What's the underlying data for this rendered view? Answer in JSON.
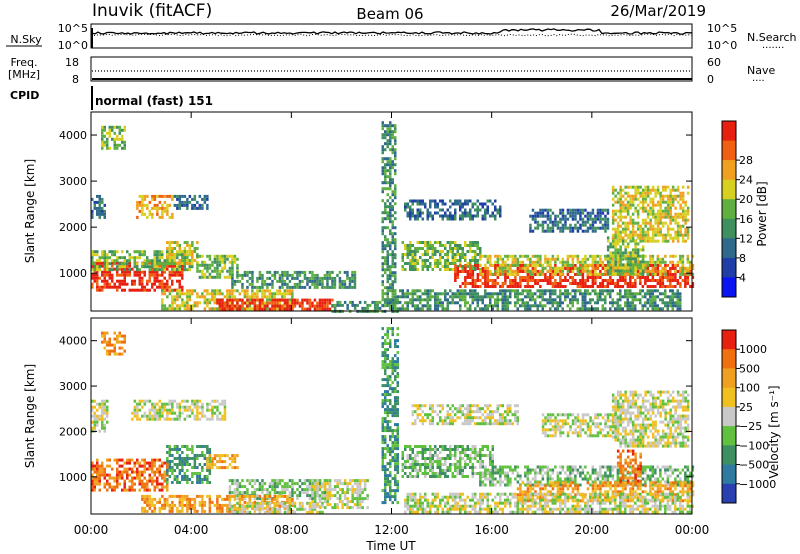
{
  "header": {
    "station": "Inuvik (fitACF)",
    "beam": "Beam 06",
    "date": "26/Mar/2019"
  },
  "noise_panel": {
    "left_label": "N.Sky",
    "right_label": "N.Search",
    "right_label_dots": "·······",
    "left_ticks": [
      "10^5",
      "10^0"
    ],
    "right_ticks": [
      "10^5",
      "10^0"
    ]
  },
  "freq_panel": {
    "left_label": "Freq.",
    "left_unit": "[MHz]",
    "right_label": "Nave",
    "right_label_dots": "····",
    "left_ticks": [
      "18",
      "8"
    ],
    "right_ticks": [
      "60",
      "0"
    ]
  },
  "cpid_panel": {
    "left_label": "CPID",
    "value": "normal (fast) 151"
  },
  "x_axis": {
    "label": "Time UT",
    "ticks": [
      "00:00",
      "04:00",
      "08:00",
      "12:00",
      "16:00",
      "20:00",
      "00:00"
    ],
    "tick_hours": [
      0,
      4,
      8,
      12,
      16,
      20,
      24
    ]
  },
  "chart_data": [
    {
      "type": "heatmap",
      "name": "power",
      "ylabel": "Slant Range [km]",
      "xlabel": "Time UT",
      "xlim_hours": [
        0,
        24
      ],
      "ylim_km": [
        180,
        4500
      ],
      "yticks": [
        1000,
        2000,
        3000,
        4000
      ],
      "colorbar": {
        "label": "Power [dB]",
        "ticks": [
          "4",
          "8",
          "12",
          "16",
          "20",
          "24",
          "28"
        ],
        "colors": [
          "#0a14f0",
          "#1f3fa6",
          "#2f6a8c",
          "#3f8f5f",
          "#5fb040",
          "#d8d020",
          "#f0a020",
          "#f06010",
          "#e82010"
        ]
      },
      "regions": [
        {
          "t0": 0.0,
          "t1": 3.6,
          "r0": 600,
          "r1": 1250,
          "level": 8
        },
        {
          "t0": 0.0,
          "t1": 4.0,
          "r0": 1100,
          "r1": 1500,
          "level": 4
        },
        {
          "t0": 3.0,
          "t1": 4.2,
          "r0": 1200,
          "r1": 1700,
          "level": 5
        },
        {
          "t0": 4.2,
          "t1": 5.8,
          "r0": 900,
          "r1": 1400,
          "level": 4
        },
        {
          "t0": 5.6,
          "t1": 10.5,
          "r0": 700,
          "r1": 1050,
          "level": 3
        },
        {
          "t0": 2.8,
          "t1": 8.0,
          "r0": 250,
          "r1": 650,
          "level": 5
        },
        {
          "t0": 5.0,
          "t1": 9.6,
          "r0": 200,
          "r1": 450,
          "level": 8
        },
        {
          "t0": 0.0,
          "t1": 0.5,
          "r0": 2200,
          "r1": 2700,
          "level": 2
        },
        {
          "t0": 1.8,
          "t1": 3.2,
          "r0": 2200,
          "r1": 2700,
          "level": 6
        },
        {
          "t0": 3.3,
          "t1": 4.6,
          "r0": 2400,
          "r1": 2700,
          "level": 2
        },
        {
          "t0": 12.4,
          "t1": 15.5,
          "r0": 1100,
          "r1": 1700,
          "level": 4
        },
        {
          "t0": 14.5,
          "t1": 24.0,
          "r0": 700,
          "r1": 1200,
          "level": 8
        },
        {
          "t0": 15.5,
          "t1": 24.0,
          "r0": 1000,
          "r1": 1400,
          "level": 5
        },
        {
          "t0": 20.6,
          "t1": 22.0,
          "r0": 1000,
          "r1": 1800,
          "level": 4
        },
        {
          "t0": 12.5,
          "t1": 16.3,
          "r0": 2200,
          "r1": 2600,
          "level": 2
        },
        {
          "t0": 20.8,
          "t1": 23.8,
          "r0": 1700,
          "r1": 2900,
          "level": 5
        },
        {
          "t0": 17.5,
          "t1": 20.6,
          "r0": 1900,
          "r1": 2400,
          "level": 2
        },
        {
          "t0": 9.6,
          "t1": 12.3,
          "r0": 200,
          "r1": 400,
          "level": 3
        },
        {
          "t0": 11.6,
          "t1": 12.1,
          "r0": 300,
          "r1": 4300,
          "level": 3
        },
        {
          "t0": 0.4,
          "t1": 1.3,
          "r0": 3700,
          "r1": 4200,
          "level": 4
        },
        {
          "t0": 12.0,
          "t1": 23.5,
          "r0": 200,
          "r1": 650,
          "level": 3
        }
      ]
    },
    {
      "type": "heatmap",
      "name": "velocity",
      "ylabel": "Slant Range [km]",
      "xlabel": "Time UT",
      "xlim_hours": [
        0,
        24
      ],
      "ylim_km": [
        180,
        4500
      ],
      "yticks": [
        1000,
        2000,
        3000,
        4000
      ],
      "colorbar": {
        "label": "Velocity [m s⁻¹]",
        "ticks": [
          "1000",
          "500",
          "100",
          "25",
          "−25",
          "−100",
          "−500",
          "−1000"
        ],
        "colors": [
          "#2a3fb0",
          "#2f7aa0",
          "#3f9060",
          "#60c040",
          "#c8c8c8",
          "#f0c020",
          "#f0a020",
          "#f07010",
          "#e82010"
        ]
      },
      "regions": [
        {
          "t0": 0.0,
          "t1": 3.0,
          "r0": 700,
          "r1": 1400,
          "level": 7
        },
        {
          "t0": 3.0,
          "t1": 4.7,
          "r0": 900,
          "r1": 1700,
          "level": 2
        },
        {
          "t0": 4.6,
          "t1": 5.8,
          "r0": 1200,
          "r1": 1500,
          "level": 6
        },
        {
          "t0": 5.5,
          "t1": 9.5,
          "r0": 500,
          "r1": 950,
          "level": 3
        },
        {
          "t0": 2.0,
          "t1": 8.0,
          "r0": 250,
          "r1": 600,
          "level": 6
        },
        {
          "t0": 5.5,
          "t1": 9.2,
          "r0": 200,
          "r1": 450,
          "level": 4
        },
        {
          "t0": 8.8,
          "t1": 11.0,
          "r0": 300,
          "r1": 950,
          "level": 4
        },
        {
          "t0": 0.0,
          "t1": 0.6,
          "r0": 2000,
          "r1": 2700,
          "level": 4
        },
        {
          "t0": 1.6,
          "t1": 4.2,
          "r0": 2300,
          "r1": 2700,
          "level": 4
        },
        {
          "t0": 4.2,
          "t1": 5.3,
          "r0": 2300,
          "r1": 2700,
          "level": 4
        },
        {
          "t0": 11.6,
          "t1": 12.2,
          "r0": 400,
          "r1": 4300,
          "level": 2
        },
        {
          "t0": 12.4,
          "t1": 16.0,
          "r0": 1000,
          "r1": 1700,
          "level": 3
        },
        {
          "t0": 15.5,
          "t1": 24.0,
          "r0": 800,
          "r1": 1250,
          "level": 3
        },
        {
          "t0": 17.0,
          "t1": 24.0,
          "r0": 500,
          "r1": 900,
          "level": 6
        },
        {
          "t0": 21.0,
          "t1": 21.9,
          "r0": 850,
          "r1": 1600,
          "level": 7
        },
        {
          "t0": 12.8,
          "t1": 17.0,
          "r0": 2200,
          "r1": 2600,
          "level": 4
        },
        {
          "t0": 20.8,
          "t1": 23.8,
          "r0": 1700,
          "r1": 2900,
          "level": 4
        },
        {
          "t0": 18.0,
          "t1": 21.0,
          "r0": 1900,
          "r1": 2400,
          "level": 4
        },
        {
          "t0": 0.4,
          "t1": 1.3,
          "r0": 3700,
          "r1": 4200,
          "level": 6
        },
        {
          "t0": 12.5,
          "t1": 24.0,
          "r0": 200,
          "r1": 650,
          "level": 4
        }
      ]
    }
  ]
}
